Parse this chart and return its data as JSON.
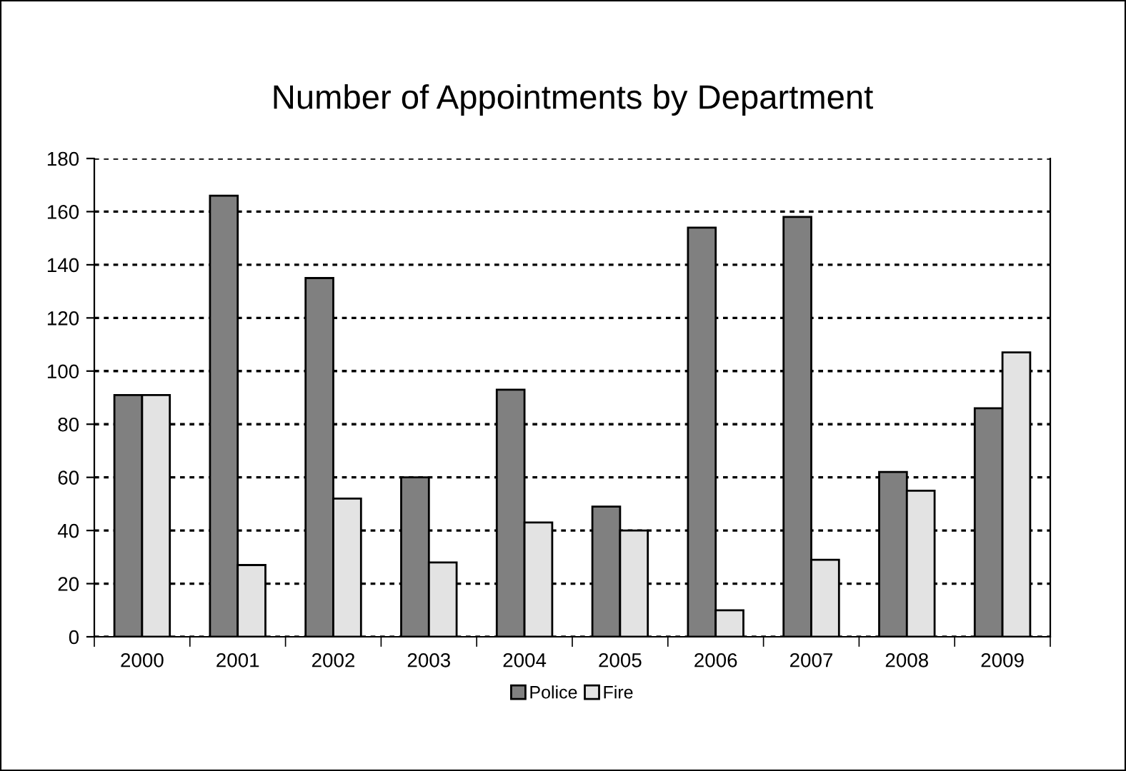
{
  "chart_data": {
    "type": "bar",
    "title": "Number of Appointments by Department",
    "categories": [
      "2000",
      "2001",
      "2002",
      "2003",
      "2004",
      "2005",
      "2006",
      "2007",
      "2008",
      "2009"
    ],
    "series": [
      {
        "name": "Police",
        "color": "#808080",
        "values": [
          91,
          166,
          135,
          60,
          93,
          49,
          154,
          158,
          62,
          86
        ]
      },
      {
        "name": "Fire",
        "color": "#e3e3e3",
        "values": [
          91,
          27,
          52,
          28,
          43,
          40,
          10,
          29,
          55,
          107
        ]
      }
    ],
    "ylim": [
      0,
      180
    ],
    "yticks": [
      0,
      20,
      40,
      60,
      80,
      100,
      120,
      140,
      160,
      180
    ],
    "grid": "y",
    "legend": "bottom"
  }
}
